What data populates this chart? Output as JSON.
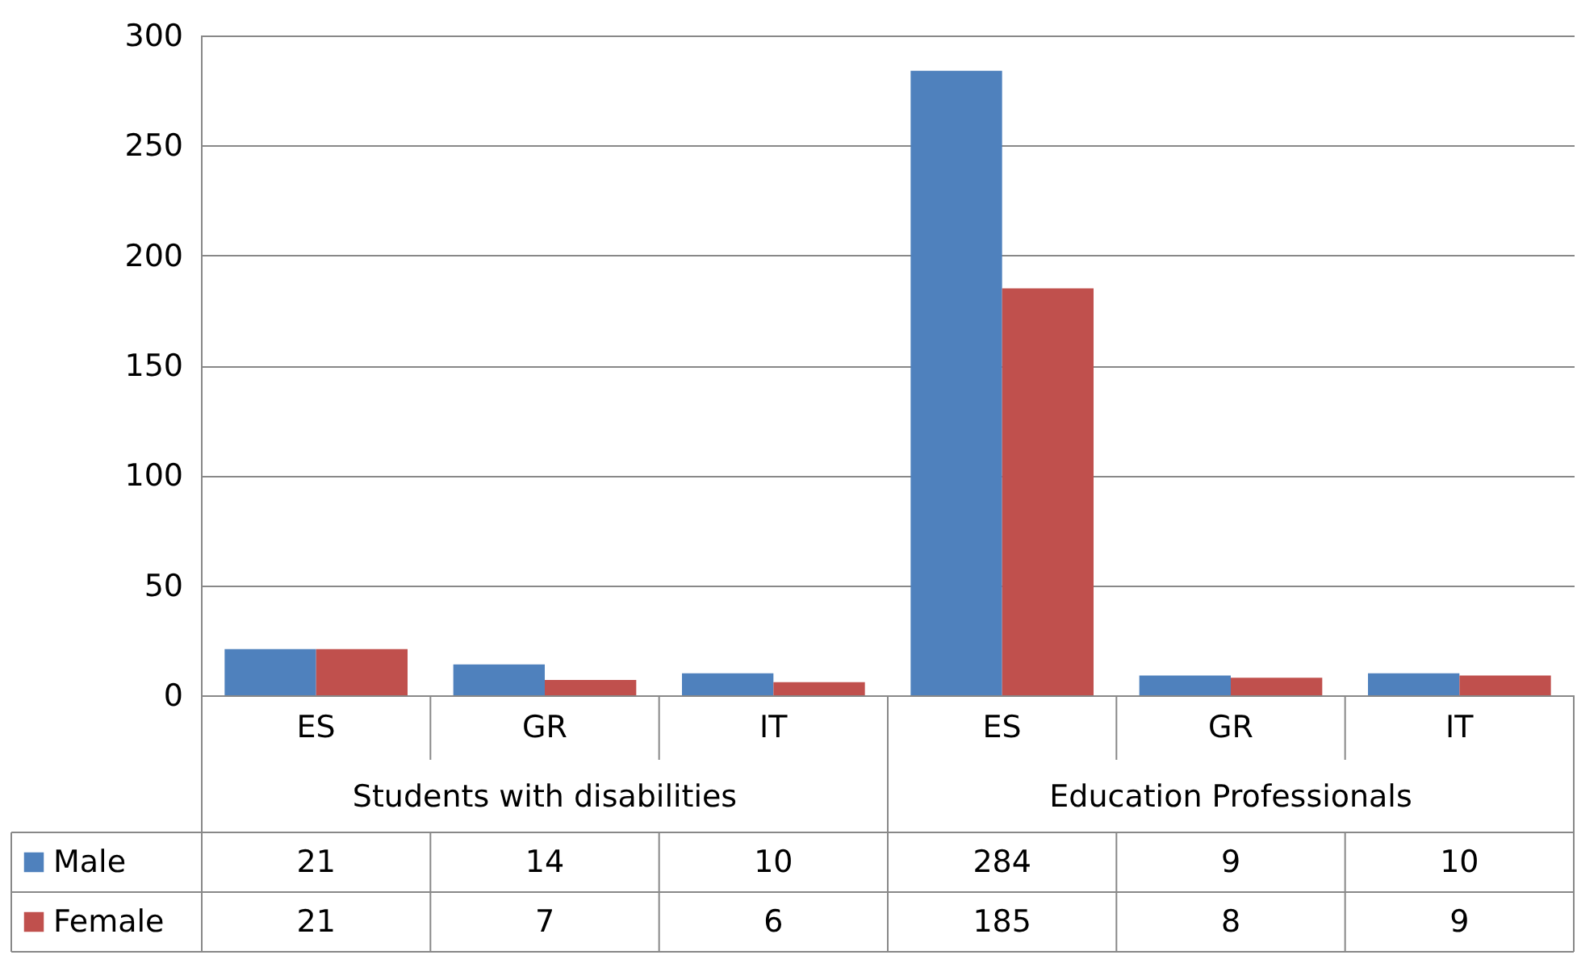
{
  "chart_data": {
    "type": "bar",
    "categories": [
      "ES",
      "GR",
      "IT",
      "ES",
      "GR",
      "IT"
    ],
    "series": [
      {
        "name": "Male",
        "color": "#4f81bd",
        "values": [
          21,
          14,
          10,
          284,
          9,
          10
        ]
      },
      {
        "name": "Female",
        "color": "#c0504d",
        "values": [
          21,
          7,
          6,
          185,
          8,
          9
        ]
      }
    ],
    "ylim": [
      0,
      300
    ],
    "yticks": [
      0,
      50,
      100,
      150,
      200,
      250,
      300
    ],
    "grid": "y",
    "legend": "bottom",
    "data_labels": true,
    "annotations": [
      "Students with disabilities",
      "Education Professionals"
    ]
  }
}
